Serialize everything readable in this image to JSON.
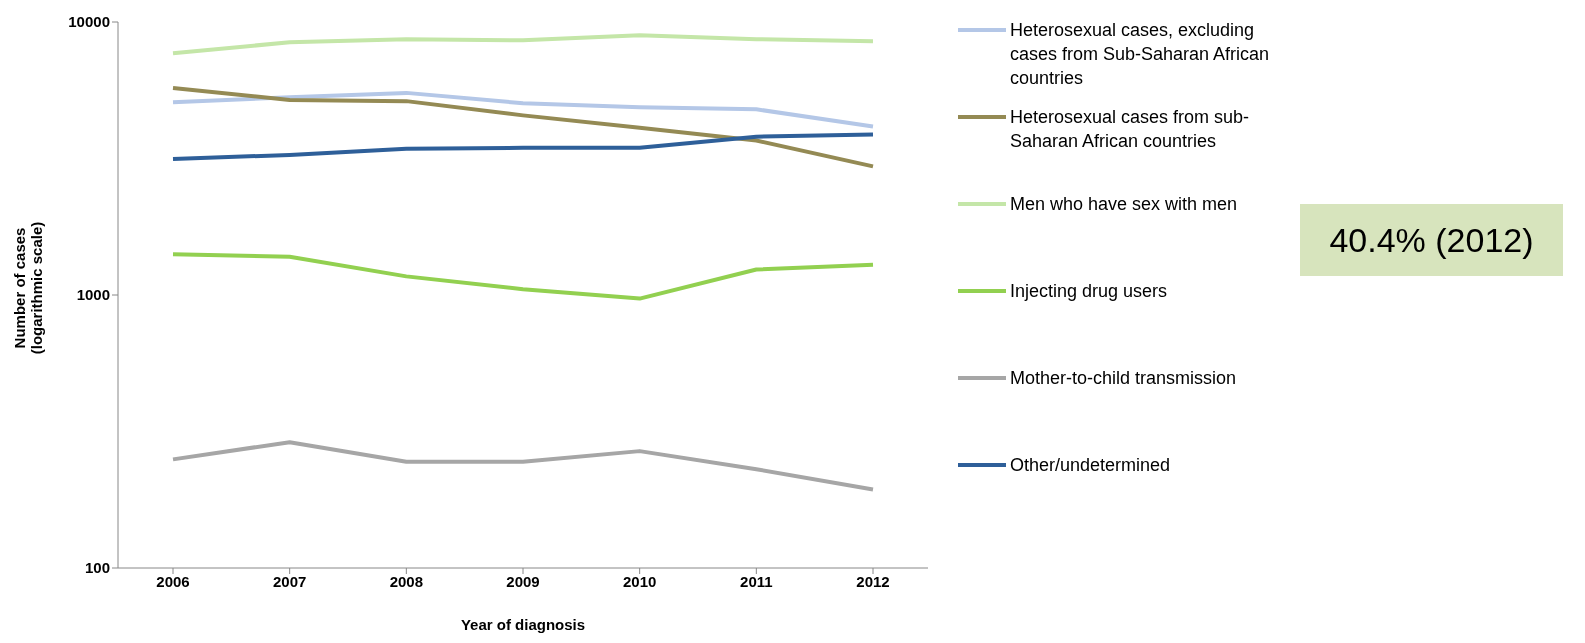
{
  "chart_data": {
    "type": "line",
    "xlabel": "Year of diagnosis",
    "ylabel": "Number of cases\n(logarithmic scale)",
    "categories": [
      "2006",
      "2007",
      "2008",
      "2009",
      "2010",
      "2011",
      "2012"
    ],
    "series": [
      {
        "name": "Heterosexual cases, excluding cases from Sub-Saharan African countries",
        "color": "#b4c7e7",
        "values": [
          5080,
          5300,
          5500,
          5040,
          4870,
          4790,
          4140
        ]
      },
      {
        "name": "Heterosexual cases from sub-Saharan African countries",
        "color": "#948a54",
        "values": [
          5730,
          5180,
          5130,
          4550,
          4100,
          3680,
          2960
        ]
      },
      {
        "name": "Men who have sex with men",
        "color": "#c4e6a8",
        "values": [
          7680,
          8430,
          8650,
          8570,
          8950,
          8650,
          8500
        ]
      },
      {
        "name": "Injecting drug users",
        "color": "#92d050",
        "values": [
          1410,
          1380,
          1170,
          1050,
          970,
          1240,
          1290
        ]
      },
      {
        "name": "Mother-to-child transmission",
        "color": "#a6a6a6",
        "values": [
          250,
          289,
          245,
          245,
          268,
          230,
          194
        ]
      },
      {
        "name": "Other/undetermined",
        "color": "#2e5f99",
        "values": [
          3150,
          3260,
          3430,
          3460,
          3460,
          3800,
          3870
        ]
      }
    ],
    "log": "y",
    "ylim": [
      100,
      10000
    ],
    "yticks": [
      100,
      1000,
      10000
    ],
    "legend": "right",
    "marker": "none",
    "line_style": "solid",
    "annotations": [
      "40.4% (2012)"
    ]
  }
}
